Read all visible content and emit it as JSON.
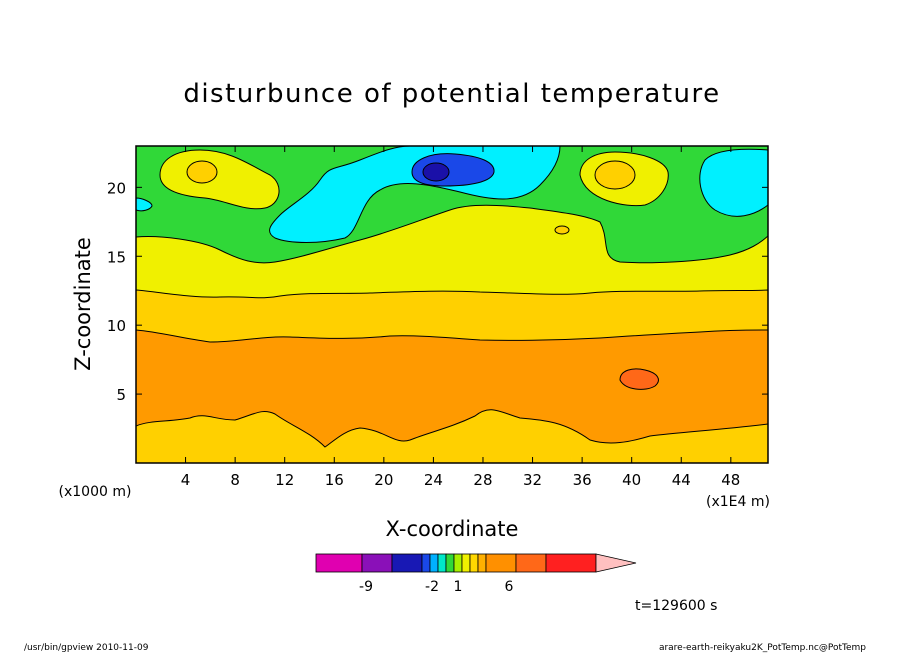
{
  "chart_data": {
    "type": "heatmap",
    "title": "disturbunce of potential temperature",
    "xlabel": "X-coordinate",
    "ylabel": "Z-coordinate",
    "x_units_left": "(x1000 m)",
    "x_units_right": "(x1E4 m)",
    "xlim": [
      0,
      51
    ],
    "ylim": [
      0,
      23
    ],
    "x_ticks": [
      "4",
      "8",
      "12",
      "16",
      "20",
      "24",
      "28",
      "32",
      "36",
      "40",
      "44",
      "48"
    ],
    "x_tick_values": [
      4,
      8,
      12,
      16,
      20,
      24,
      28,
      32,
      36,
      40,
      44,
      48
    ],
    "y_ticks": [
      "5",
      "10",
      "15",
      "20"
    ],
    "y_tick_values": [
      5,
      10,
      15,
      20
    ],
    "time_label": "t=129600 s",
    "colorbar": {
      "colors": [
        "#e000b0",
        "#8a10b8",
        "#1818b4",
        "#1a48e8",
        "#00b0ff",
        "#00e8c8",
        "#30d838",
        "#a8f000",
        "#f0f000",
        "#ffd800",
        "#ffb000",
        "#ff9000",
        "#ff6818",
        "#ff2020",
        "#ff8080",
        "#ffc0c0"
      ],
      "labels": [
        "-9",
        "-2",
        "1",
        "6"
      ]
    },
    "bands": [
      {
        "z_from": 0,
        "z_to": 2.5,
        "color": "#ffd000",
        "label": "light orange"
      },
      {
        "z_from": 2.5,
        "z_to": 9.5,
        "color": "#ff9a00",
        "label": "orange"
      },
      {
        "z_from": 9.5,
        "z_to": 12.5,
        "color": "#ffd000",
        "label": "light orange"
      },
      {
        "z_from": 12.5,
        "z_to": 16,
        "color": "#f0f000",
        "label": "yellow"
      },
      {
        "z_from": 16,
        "z_to": 23,
        "color": "#30d838",
        "label": "green"
      }
    ],
    "features": [
      {
        "kind": "warm anomaly",
        "x": 40.5,
        "z": 6.1,
        "color": "#ff6818"
      },
      {
        "kind": "cold core",
        "x": 24,
        "z": 21,
        "color": "#1a48e8"
      },
      {
        "kind": "warm patch",
        "x": 5.5,
        "z": 21,
        "color": "#ffd000"
      },
      {
        "kind": "warm patch",
        "x": 39,
        "z": 21,
        "color": "#ffd000"
      }
    ]
  },
  "footer": {
    "left": "/usr/bin/gpview   2010-11-09",
    "right": "arare-earth-reikyaku2K_PotTemp.nc@PotTemp"
  }
}
